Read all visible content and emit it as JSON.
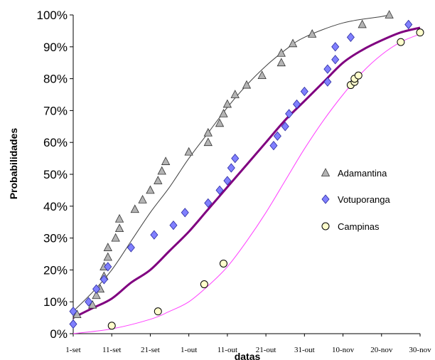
{
  "chart_data": {
    "type": "scatter",
    "xlabel": "datas",
    "ylabel": "Probabilidades",
    "x_ticks": [
      "1-set",
      "11-set",
      "21-set",
      "1-out",
      "11-out",
      "21-out",
      "31-out",
      "10-nov",
      "20-nov",
      "30-nov"
    ],
    "y_ticks": [
      "0%",
      "10%",
      "20%",
      "30%",
      "40%",
      "50%",
      "60%",
      "70%",
      "80%",
      "90%",
      "100%"
    ],
    "xlim": [
      "2000-09-01",
      "2000-11-30"
    ],
    "ylim": [
      0,
      100
    ],
    "grid": false,
    "legend_position": "right",
    "series": [
      {
        "name": "Adamantina",
        "marker": "triangle",
        "color": "#b4b4b4",
        "points": [
          [
            "2000-09-02",
            6
          ],
          [
            "2000-09-06",
            9
          ],
          [
            "2000-09-07",
            12
          ],
          [
            "2000-09-08",
            14
          ],
          [
            "2000-09-09",
            18
          ],
          [
            "2000-09-09",
            21
          ],
          [
            "2000-09-10",
            24
          ],
          [
            "2000-09-10",
            27
          ],
          [
            "2000-09-12",
            30
          ],
          [
            "2000-09-13",
            33
          ],
          [
            "2000-09-13",
            36
          ],
          [
            "2000-09-17",
            39
          ],
          [
            "2000-09-19",
            42
          ],
          [
            "2000-09-21",
            45
          ],
          [
            "2000-09-23",
            48
          ],
          [
            "2000-09-24",
            51
          ],
          [
            "2000-09-25",
            54
          ],
          [
            "2000-10-01",
            57
          ],
          [
            "2000-10-06",
            60
          ],
          [
            "2000-10-06",
            63
          ],
          [
            "2000-10-09",
            66
          ],
          [
            "2000-10-10",
            69
          ],
          [
            "2000-10-11",
            72
          ],
          [
            "2000-10-13",
            75
          ],
          [
            "2000-10-16",
            78
          ],
          [
            "2000-10-20",
            81
          ],
          [
            "2000-10-25",
            85
          ],
          [
            "2000-10-25",
            88
          ],
          [
            "2000-10-28",
            91
          ],
          [
            "2000-11-02",
            94
          ],
          [
            "2000-11-15",
            97
          ],
          [
            "2000-11-22",
            100
          ]
        ]
      },
      {
        "name": "Votuporanga",
        "marker": "diamond",
        "color": "#8080ff",
        "points": [
          [
            "2000-09-01",
            3
          ],
          [
            "2000-09-01",
            7
          ],
          [
            "2000-09-05",
            10
          ],
          [
            "2000-09-07",
            14
          ],
          [
            "2000-09-09",
            17
          ],
          [
            "2000-09-10",
            21
          ],
          [
            "2000-09-16",
            27
          ],
          [
            "2000-09-22",
            31
          ],
          [
            "2000-09-27",
            34
          ],
          [
            "2000-09-30",
            38
          ],
          [
            "2000-10-06",
            41
          ],
          [
            "2000-10-09",
            45
          ],
          [
            "2000-10-11",
            48
          ],
          [
            "2000-10-12",
            52
          ],
          [
            "2000-10-13",
            55
          ],
          [
            "2000-10-23",
            59
          ],
          [
            "2000-10-24",
            62
          ],
          [
            "2000-10-26",
            65
          ],
          [
            "2000-10-27",
            69
          ],
          [
            "2000-10-29",
            72
          ],
          [
            "2000-10-31",
            76
          ],
          [
            "2000-11-06",
            79
          ],
          [
            "2000-11-06",
            83
          ],
          [
            "2000-11-08",
            86
          ],
          [
            "2000-11-08",
            90
          ],
          [
            "2000-11-12",
            93
          ],
          [
            "2000-11-27",
            97
          ]
        ]
      },
      {
        "name": "Campinas",
        "marker": "circle",
        "color": "#ffffcc",
        "points": [
          [
            "2000-09-11",
            2.5
          ],
          [
            "2000-09-23",
            7
          ],
          [
            "2000-10-05",
            15.5
          ],
          [
            "2000-10-10",
            22
          ],
          [
            "2000-11-12",
            78
          ],
          [
            "2000-11-13",
            79
          ],
          [
            "2000-11-13",
            80
          ],
          [
            "2000-11-14",
            81
          ],
          [
            "2000-11-25",
            91.5
          ],
          [
            "2000-11-30",
            94.5
          ]
        ]
      }
    ],
    "fitted_curves": [
      {
        "series": "Adamantina",
        "color": "#404040",
        "points": [
          [
            "2000-09-01",
            7
          ],
          [
            "2000-09-06",
            13
          ],
          [
            "2000-09-11",
            20
          ],
          [
            "2000-09-16",
            29
          ],
          [
            "2000-09-21",
            38
          ],
          [
            "2000-09-26",
            46
          ],
          [
            "2000-10-01",
            55
          ],
          [
            "2000-10-06",
            63
          ],
          [
            "2000-10-11",
            71
          ],
          [
            "2000-10-16",
            78
          ],
          [
            "2000-10-21",
            84
          ],
          [
            "2000-10-26",
            89
          ],
          [
            "2000-10-31",
            93
          ],
          [
            "2000-11-10",
            97.5
          ],
          [
            "2000-11-20",
            99.5
          ],
          [
            "2000-11-22",
            100
          ]
        ]
      },
      {
        "series": "Votuporanga",
        "color": "#800080",
        "points": [
          [
            "2000-09-01",
            5
          ],
          [
            "2000-09-06",
            8
          ],
          [
            "2000-09-11",
            11
          ],
          [
            "2000-09-16",
            16
          ],
          [
            "2000-09-21",
            20
          ],
          [
            "2000-09-26",
            26
          ],
          [
            "2000-10-01",
            32
          ],
          [
            "2000-10-06",
            39
          ],
          [
            "2000-10-11",
            46
          ],
          [
            "2000-10-16",
            53
          ],
          [
            "2000-10-21",
            60
          ],
          [
            "2000-10-26",
            67
          ],
          [
            "2000-10-31",
            73
          ],
          [
            "2000-11-05",
            79
          ],
          [
            "2000-11-10",
            85
          ],
          [
            "2000-11-15",
            89
          ],
          [
            "2000-11-20",
            92
          ],
          [
            "2000-11-25",
            94.5
          ],
          [
            "2000-11-30",
            96
          ]
        ]
      },
      {
        "series": "Campinas",
        "color": "#ff40ff",
        "points": [
          [
            "2000-09-01",
            0
          ],
          [
            "2000-09-11",
            1.5
          ],
          [
            "2000-09-21",
            4.5
          ],
          [
            "2000-09-26",
            7
          ],
          [
            "2000-10-01",
            10
          ],
          [
            "2000-10-06",
            15
          ],
          [
            "2000-10-11",
            21
          ],
          [
            "2000-10-16",
            29
          ],
          [
            "2000-10-21",
            38
          ],
          [
            "2000-10-26",
            48
          ],
          [
            "2000-10-31",
            58
          ],
          [
            "2000-11-05",
            67
          ],
          [
            "2000-11-10",
            75
          ],
          [
            "2000-11-15",
            82
          ],
          [
            "2000-11-20",
            87.5
          ],
          [
            "2000-11-25",
            91.5
          ],
          [
            "2000-11-30",
            94
          ]
        ]
      }
    ]
  }
}
